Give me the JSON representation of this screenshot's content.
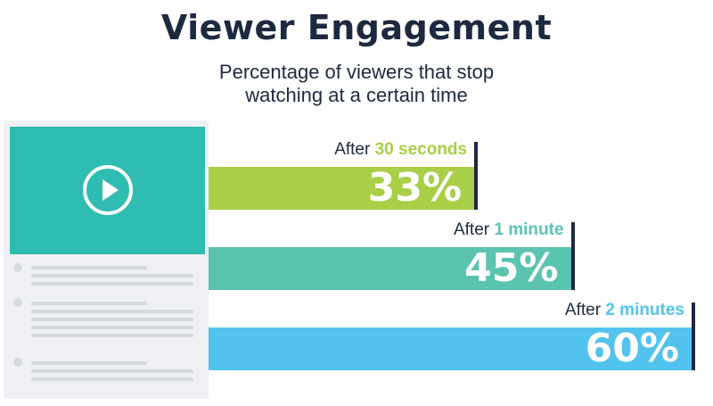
{
  "title": "Viewer Engagement",
  "subtitle_line1": "Percentage of viewers that stop",
  "subtitle_line2": "watching at a certain time",
  "colors": {
    "title": "#1d2940",
    "green": "#a8cf45",
    "teal": "#5bc4b1",
    "blue": "#52c3ee",
    "player": "#2ebdb0"
  },
  "icons": [
    "play-icon"
  ],
  "chart_data": {
    "type": "bar",
    "orientation": "horizontal",
    "categories": [
      "After 30 seconds",
      "After 1 minute",
      "After 2 minutes"
    ],
    "values": [
      33,
      45,
      60
    ],
    "unit": "%",
    "xlim": [
      0,
      60
    ],
    "bars": [
      {
        "prefix": "After ",
        "highlight": "30 seconds",
        "value": 33,
        "value_label": "33%",
        "color": "#a8cf45"
      },
      {
        "prefix": "After ",
        "highlight": "1 minute",
        "value": 45,
        "value_label": "45%",
        "color": "#5bc4b1"
      },
      {
        "prefix": "After ",
        "highlight": "2 minutes",
        "value": 60,
        "value_label": "60%",
        "color": "#52c3ee"
      }
    ],
    "title": "Viewer Engagement",
    "subtitle": "Percentage of viewers that stop watching at a certain time"
  }
}
